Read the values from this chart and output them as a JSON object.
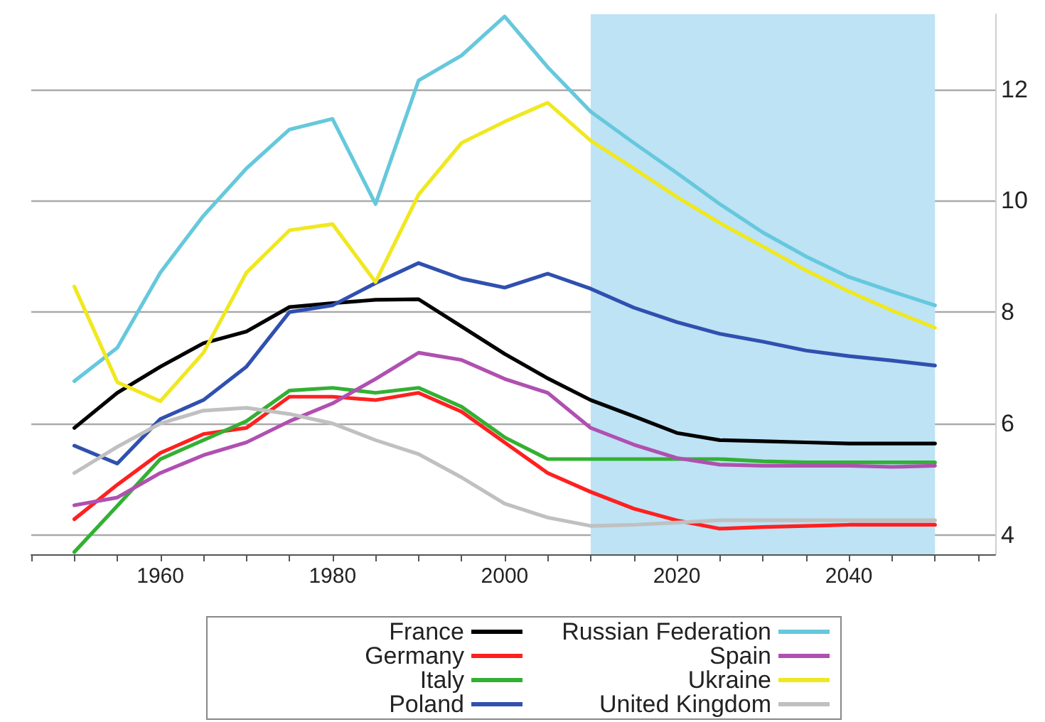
{
  "chart_data": {
    "type": "line",
    "x": [
      1950,
      1955,
      1960,
      1965,
      1970,
      1975,
      1980,
      1985,
      1990,
      1995,
      2000,
      2005,
      2010,
      2015,
      2020,
      2025,
      2030,
      2035,
      2040,
      2045,
      2050
    ],
    "series": [
      {
        "name": "France",
        "color": "#000000",
        "values": [
          5.92,
          6.55,
          7.02,
          7.44,
          7.65,
          8.09,
          8.16,
          8.22,
          8.23,
          7.74,
          7.25,
          6.81,
          6.42,
          6.13,
          5.83,
          5.7,
          5.68,
          5.66,
          5.64,
          5.64,
          5.64
        ]
      },
      {
        "name": "Germany",
        "color": "#ff2020",
        "values": [
          4.28,
          4.9,
          5.47,
          5.81,
          5.92,
          6.48,
          6.48,
          6.42,
          6.55,
          6.21,
          5.66,
          5.11,
          4.77,
          4.47,
          4.26,
          4.11,
          4.14,
          4.16,
          4.18,
          4.18,
          4.18
        ]
      },
      {
        "name": "Italy",
        "color": "#33b033",
        "values": [
          3.69,
          4.52,
          5.36,
          5.7,
          6.04,
          6.59,
          6.64,
          6.55,
          6.64,
          6.3,
          5.75,
          5.36,
          5.36,
          5.36,
          5.36,
          5.36,
          5.32,
          5.3,
          5.3,
          5.3,
          5.3
        ]
      },
      {
        "name": "Poland",
        "color": "#3050b0",
        "values": [
          5.6,
          5.28,
          6.08,
          6.42,
          7.02,
          8.0,
          8.12,
          8.52,
          8.88,
          8.6,
          8.44,
          8.69,
          8.42,
          8.08,
          7.82,
          7.61,
          7.47,
          7.31,
          7.21,
          7.13,
          7.04
        ]
      },
      {
        "name": "Russian Federation",
        "color": "#66c8dc",
        "values": [
          6.76,
          7.36,
          8.71,
          9.73,
          10.58,
          11.28,
          11.47,
          9.94,
          12.16,
          12.61,
          13.31,
          12.4,
          11.6,
          11.04,
          10.5,
          9.94,
          9.43,
          9.0,
          8.63,
          8.37,
          8.12
        ]
      },
      {
        "name": "Spain",
        "color": "#b050b0",
        "values": [
          4.53,
          4.67,
          5.11,
          5.43,
          5.66,
          6.04,
          6.36,
          6.8,
          7.27,
          7.14,
          6.8,
          6.55,
          5.92,
          5.62,
          5.38,
          5.26,
          5.24,
          5.24,
          5.24,
          5.22,
          5.24
        ]
      },
      {
        "name": "Ukraine",
        "color": "#f0e820",
        "values": [
          8.46,
          6.74,
          6.4,
          7.27,
          8.71,
          9.47,
          9.58,
          8.54,
          10.11,
          11.04,
          11.42,
          11.76,
          11.08,
          10.58,
          10.07,
          9.6,
          9.18,
          8.75,
          8.37,
          8.03,
          7.72
        ]
      },
      {
        "name": "United Kingdom",
        "color": "#c0c0c0",
        "values": [
          5.11,
          5.58,
          6.0,
          6.23,
          6.28,
          6.17,
          6.0,
          5.7,
          5.45,
          5.03,
          4.56,
          4.31,
          4.16,
          4.18,
          4.22,
          4.26,
          4.26,
          4.26,
          4.26,
          4.26,
          4.26
        ]
      }
    ],
    "xlim": [
      1945,
      2057
    ],
    "xticks": [
      {
        "value": 1945,
        "label": null
      },
      {
        "value": 1950,
        "label": null
      },
      {
        "value": 1955,
        "label": null
      },
      1960,
      {
        "value": 1965,
        "label": null
      },
      {
        "value": 1970,
        "label": null
      },
      {
        "value": 1975,
        "label": null
      },
      1980,
      {
        "value": 1985,
        "label": null
      },
      {
        "value": 1990,
        "label": null
      },
      {
        "value": 1995,
        "label": null
      },
      2000,
      {
        "value": 2005,
        "label": null
      },
      {
        "value": 2010,
        "label": null
      },
      {
        "value": 2015,
        "label": null
      },
      2020,
      {
        "value": 2025,
        "label": null
      },
      {
        "value": 2030,
        "label": null
      },
      {
        "value": 2035,
        "label": null
      },
      2040,
      {
        "value": 2045,
        "label": null
      },
      {
        "value": 2050,
        "label": null
      },
      {
        "value": 2055,
        "label": null
      }
    ],
    "ylim": [
      3.65,
      13.35
    ],
    "yticks": [
      4,
      6,
      8,
      10,
      12
    ],
    "bands": [
      {
        "axis": "x",
        "from": 2010,
        "to": 2050,
        "color": "#bde3f5"
      }
    ],
    "grid": "y",
    "legend": "bottom",
    "marker": "none",
    "line_style": "solid"
  }
}
